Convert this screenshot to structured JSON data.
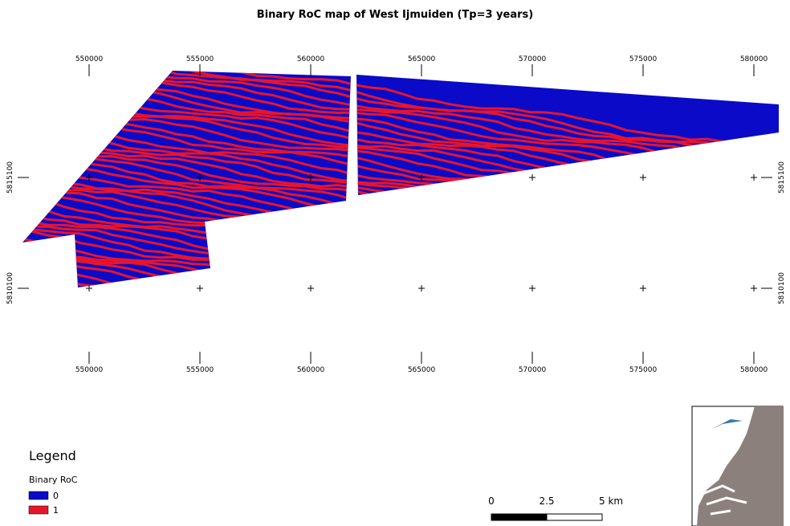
{
  "title": "Binary RoC map of West Ijmuiden (Tp=3 years)",
  "map": {
    "x_ticks": [
      550000,
      555000,
      560000,
      565000,
      570000,
      575000,
      580000
    ],
    "y_ticks": [
      5815100,
      5810100
    ]
  },
  "legend": {
    "title": "Legend",
    "layer": "Binary RoC",
    "items": [
      {
        "label": "0",
        "color": "#0a0ac8"
      },
      {
        "label": "1",
        "color": "#e8142c"
      }
    ]
  },
  "scale_bar": {
    "labels": [
      "0",
      "2.5",
      "5 km"
    ]
  }
}
